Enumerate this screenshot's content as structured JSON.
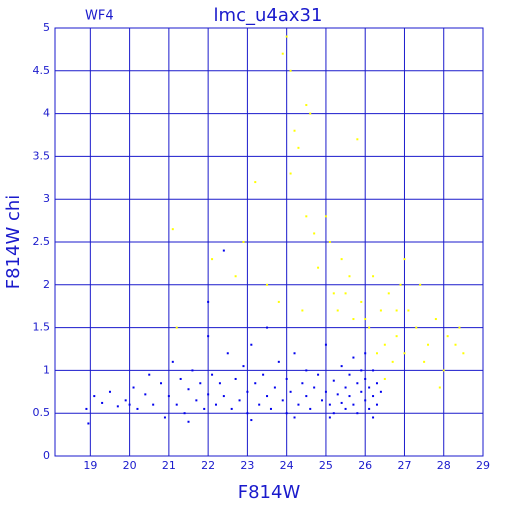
{
  "chart_data": {
    "type": "scatter",
    "title": "lmc_u4ax31",
    "annotation": "WF4",
    "xlabel": "F814W",
    "ylabel": "F814W chi",
    "xlim": [
      18.1,
      29
    ],
    "ylim": [
      0,
      5
    ],
    "xticks": [
      19,
      20,
      21,
      22,
      23,
      24,
      25,
      26,
      27,
      28,
      29
    ],
    "yticks": [
      0,
      0.5,
      1,
      1.5,
      2,
      2.5,
      3,
      3.5,
      4,
      4.5,
      5
    ],
    "grid": true,
    "axis_color": "#1a1acc",
    "series": [
      {
        "color": "#ffff00",
        "x": [
          24.0,
          23.9,
          24.1,
          24.2,
          24.3,
          24.5,
          24.6,
          24.1,
          23.2,
          24.5,
          24.7,
          25.0,
          25.1,
          25.4,
          25.6,
          25.8,
          25.5,
          25.3,
          25.7,
          25.9,
          26.1,
          26.2,
          26.4,
          26.5,
          26.6,
          26.8,
          27.0,
          27.1,
          27.3,
          27.5,
          27.6,
          27.8,
          28.0,
          28.1,
          28.3,
          28.4,
          27.9,
          27.0,
          26.9,
          26.3,
          26.5,
          26.7,
          22.7,
          22.9,
          21.1,
          21.2,
          22.1,
          23.5,
          23.8,
          24.8,
          25.2,
          26.0,
          27.4,
          28.5,
          26.8,
          24.4
        ],
        "values": [
          4.9,
          4.7,
          4.5,
          3.8,
          3.6,
          4.1,
          4.0,
          3.3,
          3.2,
          2.8,
          2.6,
          2.8,
          2.5,
          2.3,
          2.1,
          3.7,
          1.9,
          1.7,
          1.6,
          1.8,
          1.5,
          2.1,
          1.7,
          1.3,
          1.9,
          1.4,
          1.2,
          1.7,
          1.5,
          1.1,
          1.3,
          1.6,
          1.0,
          1.4,
          1.3,
          1.5,
          0.8,
          2.3,
          2.0,
          1.2,
          0.9,
          1.1,
          2.1,
          2.5,
          2.65,
          1.5,
          2.3,
          2.0,
          1.8,
          2.2,
          1.9,
          1.6,
          2.0,
          1.2,
          1.7,
          1.7
        ]
      },
      {
        "color": "#0000ee",
        "x": [
          18.9,
          18.95,
          19.1,
          19.3,
          19.5,
          19.7,
          19.9,
          20.1,
          20.2,
          20.4,
          20.5,
          20.6,
          20.8,
          20.9,
          21.0,
          21.1,
          21.2,
          21.3,
          21.4,
          21.5,
          21.6,
          21.7,
          21.8,
          21.9,
          22.0,
          22.0,
          22.1,
          22.2,
          22.3,
          22.4,
          22.4,
          22.5,
          22.6,
          22.7,
          22.8,
          22.9,
          23.0,
          23.0,
          23.1,
          23.2,
          23.3,
          23.4,
          23.5,
          23.5,
          23.6,
          23.7,
          23.8,
          23.9,
          24.0,
          24.0,
          24.1,
          24.2,
          24.3,
          24.4,
          24.5,
          24.5,
          24.6,
          24.7,
          24.8,
          24.9,
          25.0,
          25.0,
          25.1,
          25.2,
          25.2,
          25.3,
          25.4,
          25.4,
          25.5,
          25.5,
          25.6,
          25.6,
          25.7,
          25.7,
          25.8,
          25.8,
          25.9,
          25.9,
          26.0,
          26.0,
          26.0,
          26.1,
          26.1,
          26.2,
          26.2,
          26.3,
          26.3,
          26.4,
          24.2,
          23.1,
          25.1,
          26.2,
          22.0,
          21.5,
          20.0
        ],
        "values": [
          0.55,
          0.38,
          0.7,
          0.62,
          0.75,
          0.58,
          0.65,
          0.8,
          0.55,
          0.72,
          0.95,
          0.6,
          0.85,
          0.45,
          0.7,
          1.1,
          0.6,
          0.9,
          0.5,
          0.78,
          1.0,
          0.65,
          0.85,
          0.55,
          1.4,
          0.72,
          0.95,
          0.6,
          0.85,
          2.4,
          0.7,
          1.2,
          0.55,
          0.9,
          0.65,
          1.05,
          0.75,
          0.5,
          1.3,
          0.85,
          0.6,
          0.95,
          0.7,
          1.5,
          0.55,
          0.8,
          1.1,
          0.65,
          0.9,
          0.5,
          0.75,
          1.2,
          0.6,
          0.85,
          0.7,
          1.0,
          0.55,
          0.8,
          0.95,
          0.65,
          0.75,
          1.3,
          0.6,
          0.88,
          0.5,
          0.72,
          1.05,
          0.62,
          0.8,
          0.55,
          0.95,
          0.7,
          1.15,
          0.6,
          0.85,
          0.5,
          0.75,
          1.0,
          0.65,
          0.9,
          1.2,
          0.55,
          0.8,
          0.7,
          1.0,
          0.6,
          0.85,
          0.75,
          0.45,
          0.42,
          0.45,
          0.45,
          1.8,
          0.4,
          0.6
        ]
      }
    ]
  }
}
